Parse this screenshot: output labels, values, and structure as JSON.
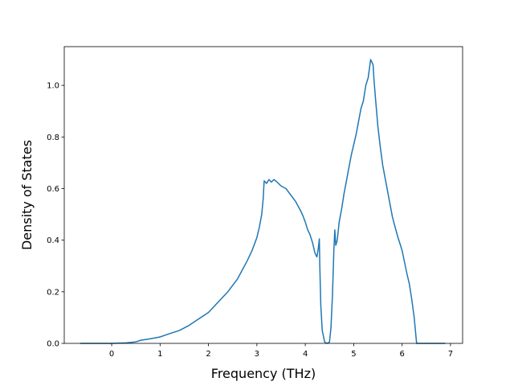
{
  "chart_data": {
    "type": "line",
    "title": "",
    "xlabel": "Frequency (THz)",
    "ylabel": "Density of States",
    "xlim": [
      -0.98,
      7.25
    ],
    "ylim": [
      0.0,
      1.15
    ],
    "grid": false,
    "legend": "none",
    "x_ticks": [
      0,
      1,
      2,
      3,
      4,
      5,
      6,
      7
    ],
    "x_tick_labels": [
      "0",
      "1",
      "2",
      "3",
      "4",
      "5",
      "6",
      "7"
    ],
    "y_ticks": [
      0.0,
      0.2,
      0.4,
      0.6,
      0.8,
      1.0
    ],
    "y_tick_labels": [
      "0.0",
      "0.2",
      "0.4",
      "0.6",
      "0.8",
      "1.0"
    ],
    "series": [
      {
        "color": "#1f77b4",
        "x": [
          -0.64,
          0.0,
          0.3,
          0.5,
          0.6,
          0.8,
          1.0,
          1.2,
          1.4,
          1.6,
          1.8,
          2.0,
          2.2,
          2.4,
          2.6,
          2.8,
          2.9,
          3.0,
          3.05,
          3.1,
          3.13,
          3.15,
          3.2,
          3.25,
          3.3,
          3.35,
          3.4,
          3.5,
          3.6,
          3.7,
          3.8,
          3.9,
          3.95,
          4.0,
          4.05,
          4.1,
          4.15,
          4.2,
          4.24,
          4.27,
          4.29,
          4.3,
          4.32,
          4.35,
          4.4,
          4.45,
          4.5,
          4.53,
          4.56,
          4.59,
          4.61,
          4.63,
          4.66,
          4.7,
          4.75,
          4.8,
          4.85,
          4.9,
          4.95,
          5.0,
          5.05,
          5.1,
          5.15,
          5.2,
          5.25,
          5.3,
          5.35,
          5.4,
          5.42,
          5.45,
          5.5,
          5.55,
          5.6,
          5.7,
          5.8,
          5.9,
          6.0,
          6.1,
          6.15,
          6.2,
          6.25,
          6.3,
          6.4,
          6.6,
          6.88
        ],
        "y": [
          0.0,
          0.0,
          0.002,
          0.006,
          0.012,
          0.018,
          0.025,
          0.038,
          0.05,
          0.07,
          0.095,
          0.12,
          0.16,
          0.2,
          0.25,
          0.32,
          0.36,
          0.41,
          0.45,
          0.5,
          0.56,
          0.63,
          0.62,
          0.635,
          0.625,
          0.635,
          0.628,
          0.61,
          0.6,
          0.575,
          0.55,
          0.515,
          0.495,
          0.47,
          0.44,
          0.42,
          0.39,
          0.35,
          0.335,
          0.37,
          0.405,
          0.3,
          0.15,
          0.05,
          0.005,
          0.0,
          0.005,
          0.06,
          0.18,
          0.36,
          0.44,
          0.38,
          0.4,
          0.47,
          0.52,
          0.58,
          0.63,
          0.68,
          0.73,
          0.77,
          0.81,
          0.86,
          0.91,
          0.94,
          1.0,
          1.03,
          1.1,
          1.08,
          1.02,
          0.95,
          0.84,
          0.76,
          0.69,
          0.59,
          0.49,
          0.42,
          0.36,
          0.27,
          0.23,
          0.17,
          0.1,
          0.0,
          0.0,
          0.0,
          0.0
        ]
      }
    ]
  }
}
